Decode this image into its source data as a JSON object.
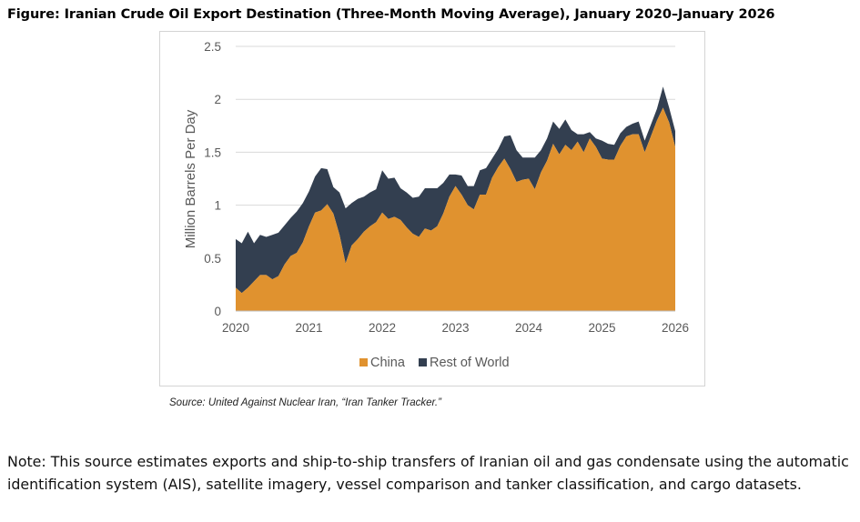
{
  "figure_title": "Figure: Iranian Crude Oil Export Destination (Three-Month Moving Average), January 2020–January 2026",
  "source": "Source: United Against Nuclear Iran, “Iran Tanker Tracker.”",
  "note": "Note: This source estimates exports and ship-to-ship transfers of Iranian oil and gas condensate using the automatic identification system (AIS), satellite imagery, vessel comparison and tanker classification, and cargo datasets.",
  "colors": {
    "china": "#E0922F",
    "rest_of_world": "#333F50",
    "grid": "#d9d9d9",
    "tick_text": "#595959"
  },
  "chart_data": {
    "type": "area",
    "stacked": true,
    "title": "",
    "xlabel": "",
    "ylabel": "Million Barrels Per Day",
    "ylim": [
      0,
      2.5
    ],
    "xlim": [
      2020,
      2026
    ],
    "yticks": [
      0,
      0.5,
      1,
      1.5,
      2,
      2.5
    ],
    "ytick_labels": [
      "0",
      "0.5",
      "1",
      "1.5",
      "2",
      "2.5"
    ],
    "xticks": [
      2020,
      2021,
      2022,
      2023,
      2024,
      2025,
      2026
    ],
    "xtick_labels": [
      "2020",
      "2021",
      "2022",
      "2023",
      "2024",
      "2025",
      "2026"
    ],
    "legend_position": "bottom-center",
    "x": [
      2020.0,
      2020.083,
      2020.167,
      2020.25,
      2020.333,
      2020.417,
      2020.5,
      2020.583,
      2020.667,
      2020.75,
      2020.833,
      2020.917,
      2021.0,
      2021.083,
      2021.167,
      2021.25,
      2021.333,
      2021.417,
      2021.5,
      2021.583,
      2021.667,
      2021.75,
      2021.833,
      2021.917,
      2022.0,
      2022.083,
      2022.167,
      2022.25,
      2022.333,
      2022.417,
      2022.5,
      2022.583,
      2022.667,
      2022.75,
      2022.833,
      2022.917,
      2023.0,
      2023.083,
      2023.167,
      2023.25,
      2023.333,
      2023.417,
      2023.5,
      2023.583,
      2023.667,
      2023.75,
      2023.833,
      2023.917,
      2024.0,
      2024.083,
      2024.167,
      2024.25,
      2024.333,
      2024.417,
      2024.5,
      2024.583,
      2024.667,
      2024.75,
      2024.833,
      2024.917,
      2025.0,
      2025.083,
      2025.167,
      2025.25,
      2025.333,
      2025.417,
      2025.5,
      2025.583,
      2025.667,
      2025.75,
      2025.833,
      2025.917,
      2026.0
    ],
    "series": [
      {
        "name": "China",
        "values": [
          0.22,
          0.17,
          0.22,
          0.28,
          0.34,
          0.34,
          0.3,
          0.33,
          0.44,
          0.52,
          0.55,
          0.65,
          0.8,
          0.93,
          0.95,
          1.01,
          0.92,
          0.72,
          0.45,
          0.62,
          0.68,
          0.75,
          0.8,
          0.84,
          0.93,
          0.87,
          0.89,
          0.86,
          0.79,
          0.73,
          0.7,
          0.78,
          0.76,
          0.8,
          0.92,
          1.08,
          1.18,
          1.1,
          1.0,
          0.96,
          1.1,
          1.1,
          1.26,
          1.36,
          1.44,
          1.34,
          1.22,
          1.24,
          1.25,
          1.15,
          1.31,
          1.42,
          1.58,
          1.48,
          1.57,
          1.52,
          1.6,
          1.5,
          1.63,
          1.55,
          1.44,
          1.43,
          1.43,
          1.56,
          1.65,
          1.67,
          1.67,
          1.5,
          1.65,
          1.8,
          1.92,
          1.78,
          1.55
        ]
      },
      {
        "name": "Rest of World",
        "values": [
          0.46,
          0.47,
          0.53,
          0.36,
          0.38,
          0.36,
          0.42,
          0.41,
          0.37,
          0.36,
          0.39,
          0.37,
          0.33,
          0.34,
          0.4,
          0.33,
          0.25,
          0.4,
          0.52,
          0.4,
          0.38,
          0.33,
          0.32,
          0.31,
          0.4,
          0.38,
          0.37,
          0.3,
          0.33,
          0.34,
          0.38,
          0.38,
          0.4,
          0.36,
          0.29,
          0.21,
          0.11,
          0.18,
          0.18,
          0.22,
          0.23,
          0.25,
          0.18,
          0.17,
          0.21,
          0.32,
          0.3,
          0.21,
          0.2,
          0.3,
          0.21,
          0.21,
          0.21,
          0.24,
          0.24,
          0.19,
          0.07,
          0.17,
          0.06,
          0.08,
          0.17,
          0.15,
          0.14,
          0.12,
          0.09,
          0.1,
          0.12,
          0.11,
          0.11,
          0.11,
          0.2,
          0.14,
          0.15
        ]
      }
    ]
  }
}
